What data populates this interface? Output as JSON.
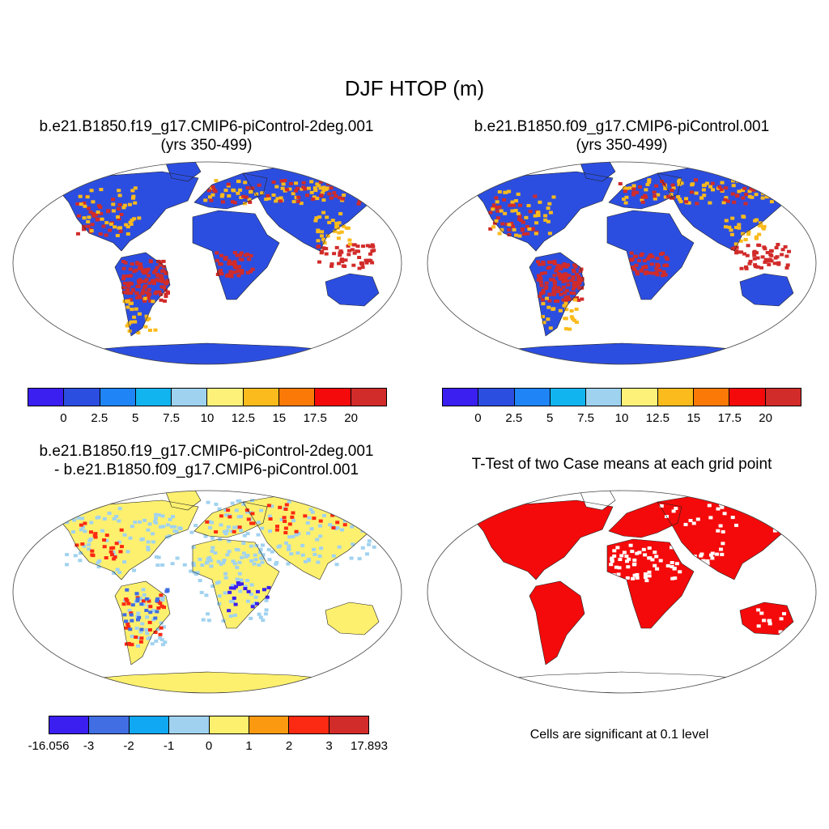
{
  "figure": {
    "title": "DJF HTOP (m)"
  },
  "panels": [
    {
      "id": "case1",
      "title_line1": "b.e21.B1850.f19_g17.CMIP6-piControl-2deg.001",
      "title_line2": "(yrs 350-499)"
    },
    {
      "id": "case2",
      "title_line1": "b.e21.B1850.f09_g17.CMIP6-piControl.001",
      "title_line2": "(yrs 350-499)"
    },
    {
      "id": "diff",
      "title_line1": "b.e21.B1850.f19_g17.CMIP6-piControl-2deg.001",
      "title_line2": "- b.e21.B1850.f09_g17.CMIP6-piControl.001"
    },
    {
      "id": "ttest",
      "title_line1": "T-Test of two Case means at each grid point",
      "note": "Cells are significant at 0.1 level"
    }
  ],
  "colorbars": {
    "mean": {
      "colors": [
        "#3a1ff0",
        "#2c4ee0",
        "#1f84f5",
        "#12b4ef",
        "#9ed2ee",
        "#fdf17a",
        "#fbbb1c",
        "#fb7a07",
        "#f40a0a",
        "#d12b2a"
      ],
      "labels": [
        "0",
        "2.5",
        "5",
        "7.5",
        "10",
        "12.5",
        "15",
        "17.5",
        "20"
      ]
    },
    "diff": {
      "colors": [
        "#3a1ff0",
        "#416ee3",
        "#10a8f2",
        "#a0d2ef",
        "#fdf06e",
        "#fb9a10",
        "#fc2a13",
        "#d12b2a"
      ],
      "labels": [
        "-16.056",
        "-3",
        "-2",
        "-1",
        "0",
        "1",
        "2",
        "3",
        "17.893"
      ]
    }
  },
  "map_colors": {
    "mean_land": "#2c4ee0",
    "mean_tropics": "#d12b2a",
    "mean_mid": "#fbbb1c",
    "diff_land": "#fdf06e",
    "diff_light": "#a0d2ef",
    "sig": "#f40a0a"
  }
}
